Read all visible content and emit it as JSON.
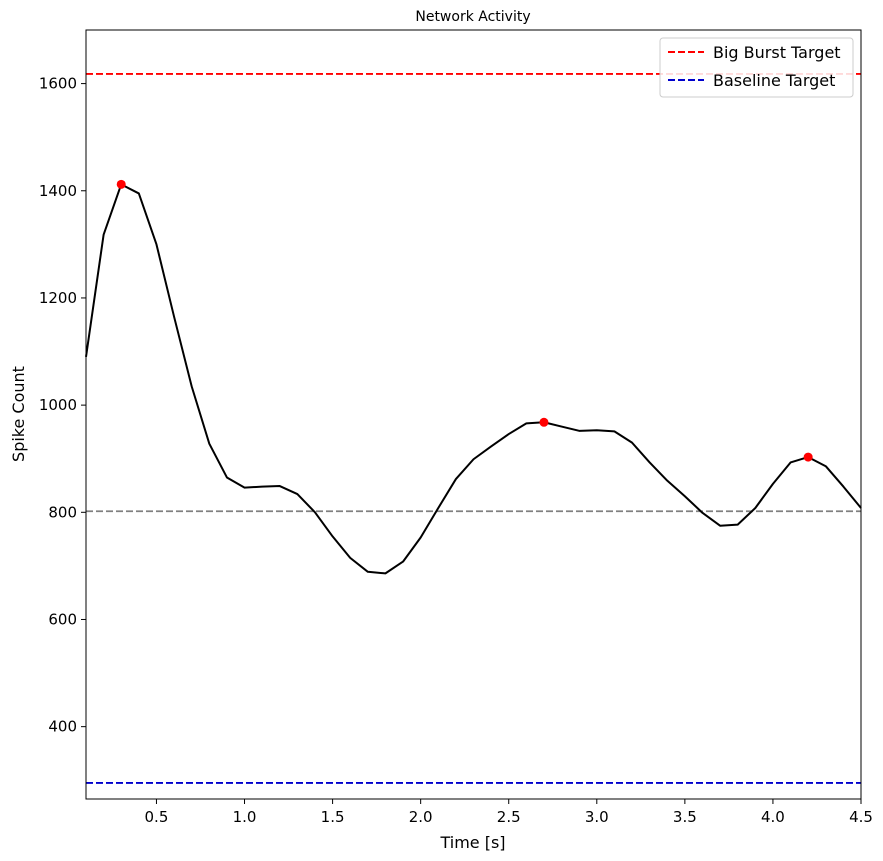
{
  "chart_data": {
    "type": "line",
    "title": "Network Activity",
    "xlabel": "Time [s]",
    "ylabel": "Spike Count",
    "xlim": [
      0.1,
      4.5
    ],
    "ylim": [
      265,
      1700
    ],
    "xticks": [
      0.5,
      1.0,
      1.5,
      2.0,
      2.5,
      3.0,
      3.5,
      4.0,
      4.5
    ],
    "xtick_labels": [
      "0.5",
      "1.0",
      "1.5",
      "2.0",
      "2.5",
      "3.0",
      "3.5",
      "4.0",
      "4.5"
    ],
    "yticks": [
      400,
      600,
      800,
      1000,
      1200,
      1400,
      1600
    ],
    "ytick_labels": [
      "400",
      "600",
      "800",
      "1000",
      "1200",
      "1400",
      "1600"
    ],
    "grid": false,
    "legend_position": "top-right",
    "series": [
      {
        "color": "#000000",
        "x": [
          0.1,
          0.2,
          0.3,
          0.4,
          0.5,
          0.6,
          0.7,
          0.8,
          0.9,
          1.0,
          1.1,
          1.2,
          1.3,
          1.4,
          1.5,
          1.6,
          1.7,
          1.8,
          1.9,
          2.0,
          2.1,
          2.2,
          2.3,
          2.4,
          2.5,
          2.6,
          2.7,
          2.8,
          2.9,
          3.0,
          3.1,
          3.2,
          3.3,
          3.4,
          3.5,
          3.6,
          3.7,
          3.8,
          3.9,
          4.0,
          4.1,
          4.2,
          4.3,
          4.4,
          4.5
        ],
        "y": [
          1090,
          1318,
          1412,
          1395,
          1300,
          1165,
          1035,
          928,
          865,
          846,
          848,
          849,
          834,
          800,
          755,
          715,
          689,
          686,
          708,
          753,
          808,
          862,
          899,
          923,
          946,
          966,
          968,
          960,
          952,
          953,
          951,
          930,
          893,
          859,
          830,
          799,
          775,
          777,
          808,
          853,
          893,
          903,
          886,
          848,
          808
        ]
      }
    ],
    "peaks": {
      "color": "#ff0000",
      "x": [
        0.3,
        2.7,
        4.2
      ],
      "y": [
        1412,
        968,
        903
      ]
    },
    "reference_lines": [
      {
        "name": "Big Burst Target",
        "y": 1618,
        "color": "#ff0000",
        "style": "dashed",
        "in_legend": true
      },
      {
        "name": "Baseline Target",
        "y": 295,
        "color": "#0000cc",
        "style": "dashed",
        "in_legend": true
      },
      {
        "y": 802,
        "color": "#808080",
        "style": "dashed",
        "in_legend": false
      }
    ],
    "legend": [
      {
        "label": "Big Burst Target",
        "color": "#ff0000"
      },
      {
        "label": "Baseline Target",
        "color": "#0000cc"
      }
    ]
  }
}
